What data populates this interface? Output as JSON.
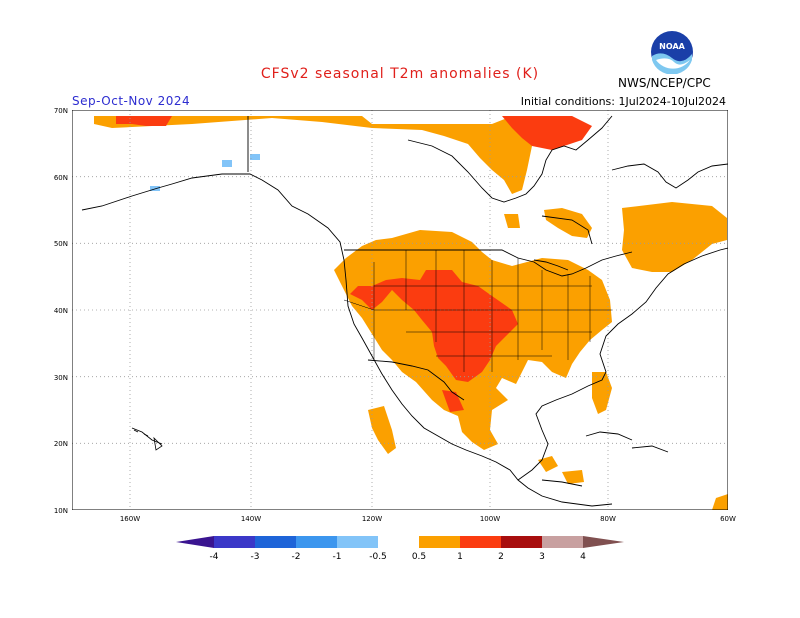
{
  "title": "CFSv2 seasonal T2m anomalies (K)",
  "season": "Sep-Oct-Nov 2024",
  "initial_conditions": "Initial conditions: 1Jul2024-10Jul2024",
  "agency": "NWS/NCEP/CPC",
  "logo_text": "NOAA",
  "lat_labels": [
    "70N",
    "60N",
    "50N",
    "40N",
    "30N",
    "20N",
    "10N"
  ],
  "lon_labels": [
    "160W",
    "140W",
    "120W",
    "100W",
    "80W",
    "60W"
  ],
  "colorbar": {
    "ticks": [
      "-4",
      "-3",
      "-2",
      "-1",
      "-0.5",
      "0.5",
      "1",
      "2",
      "3",
      "4"
    ],
    "colors": {
      "lt_-4": "#3a1490",
      "-4_-3": "#3b38c8",
      "-3_-2": "#1e64d8",
      "-2_-1": "#3c96ee",
      "-1_-0.5": "#82c4f8",
      "-0.5_0.5": "#ffffff",
      "0.5_1": "#fba000",
      "1_2": "#fb3c10",
      "2_3": "#a80e0e",
      "3_4": "#c8a0a0",
      "gt_4": "#805050"
    }
  }
}
